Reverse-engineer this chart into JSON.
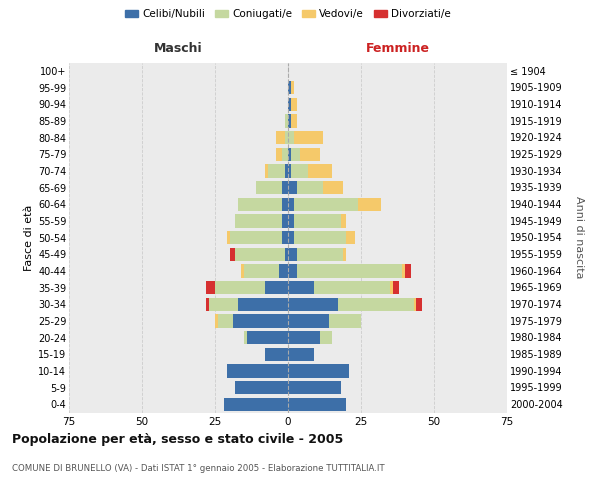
{
  "age_groups": [
    "0-4",
    "5-9",
    "10-14",
    "15-19",
    "20-24",
    "25-29",
    "30-34",
    "35-39",
    "40-44",
    "45-49",
    "50-54",
    "55-59",
    "60-64",
    "65-69",
    "70-74",
    "75-79",
    "80-84",
    "85-89",
    "90-94",
    "95-99",
    "100+"
  ],
  "birth_years": [
    "2000-2004",
    "1995-1999",
    "1990-1994",
    "1985-1989",
    "1980-1984",
    "1975-1979",
    "1970-1974",
    "1965-1969",
    "1960-1964",
    "1955-1959",
    "1950-1954",
    "1945-1949",
    "1940-1944",
    "1935-1939",
    "1930-1934",
    "1925-1929",
    "1920-1924",
    "1915-1919",
    "1910-1914",
    "1905-1909",
    "≤ 1904"
  ],
  "colors": {
    "celibi": "#3d6fa8",
    "coniugati": "#c5d8a0",
    "vedovi": "#f5c96a",
    "divorziati": "#d63030"
  },
  "maschi": {
    "celibi": [
      22,
      18,
      21,
      8,
      14,
      19,
      17,
      8,
      3,
      1,
      2,
      2,
      2,
      2,
      1,
      0,
      0,
      0,
      0,
      0,
      0
    ],
    "coniugati": [
      0,
      0,
      0,
      0,
      1,
      5,
      10,
      17,
      12,
      17,
      18,
      16,
      15,
      9,
      6,
      2,
      1,
      1,
      0,
      0,
      0
    ],
    "vedovi": [
      0,
      0,
      0,
      0,
      0,
      1,
      0,
      0,
      1,
      0,
      1,
      0,
      0,
      0,
      1,
      2,
      3,
      0,
      0,
      0,
      0
    ],
    "divorziati": [
      0,
      0,
      0,
      0,
      0,
      0,
      1,
      3,
      0,
      2,
      0,
      0,
      0,
      0,
      0,
      0,
      0,
      0,
      0,
      0,
      0
    ]
  },
  "femmine": {
    "celibi": [
      20,
      18,
      21,
      9,
      11,
      14,
      17,
      9,
      3,
      3,
      2,
      2,
      2,
      3,
      1,
      1,
      0,
      1,
      1,
      1,
      0
    ],
    "coniugati": [
      0,
      0,
      0,
      0,
      4,
      11,
      26,
      26,
      36,
      16,
      18,
      16,
      22,
      9,
      6,
      3,
      2,
      0,
      0,
      0,
      0
    ],
    "vedovi": [
      0,
      0,
      0,
      0,
      0,
      0,
      1,
      1,
      1,
      1,
      3,
      2,
      8,
      7,
      8,
      7,
      10,
      2,
      2,
      1,
      0
    ],
    "divorziati": [
      0,
      0,
      0,
      0,
      0,
      0,
      2,
      2,
      2,
      0,
      0,
      0,
      0,
      0,
      0,
      0,
      0,
      0,
      0,
      0,
      0
    ]
  },
  "xlim": 75,
  "title": "Popolazione per età, sesso e stato civile - 2005",
  "subtitle": "COMUNE DI BRUNELLO (VA) - Dati ISTAT 1° gennaio 2005 - Elaborazione TUTTITALIA.IT",
  "ylabel_left": "Fasce di età",
  "ylabel_right": "Anni di nascita",
  "xlabel_left": "Maschi",
  "xlabel_right": "Femmine",
  "bg_color": "#ffffff",
  "plot_bg": "#ebebeb",
  "grid_color": "#cccccc",
  "legend_labels": [
    "Celibi/Nubili",
    "Coniugati/e",
    "Vedovi/e",
    "Divorziati/e"
  ]
}
